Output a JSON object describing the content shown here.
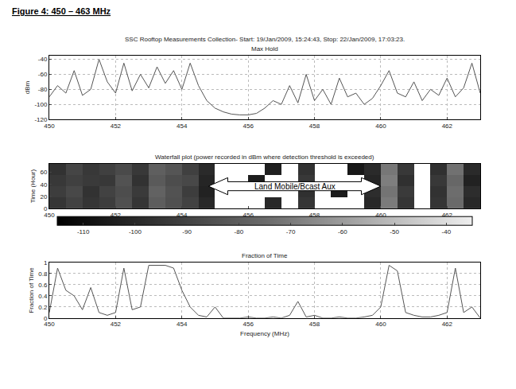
{
  "heading": "Figure 4: 450 – 463 MHz",
  "subtitle": "SSC Rooftop Measurements Collection- Start: 19/Jan/2009, 15:24:43, Stop: 22/Jan/2009, 17:03:23.",
  "chart_data": [
    {
      "type": "line",
      "title": "Max Hold",
      "y_label": "dBm",
      "color": "#555555",
      "grid": true,
      "x": [
        450,
        450.25,
        450.5,
        450.75,
        451,
        451.25,
        451.5,
        451.75,
        452,
        452.25,
        452.5,
        452.75,
        453,
        453.25,
        453.5,
        453.75,
        454,
        454.25,
        454.5,
        454.75,
        455,
        455.25,
        455.5,
        455.75,
        456,
        456.25,
        456.5,
        456.75,
        457,
        457.25,
        457.5,
        457.75,
        458,
        458.25,
        458.5,
        458.75,
        459,
        459.25,
        459.5,
        459.75,
        460,
        460.25,
        460.5,
        460.75,
        461,
        461.25,
        461.5,
        461.75,
        462,
        462.25,
        462.5,
        462.75,
        463
      ],
      "values": [
        -90,
        -75,
        -85,
        -55,
        -88,
        -80,
        -40,
        -70,
        -85,
        -45,
        -82,
        -60,
        -78,
        -50,
        -72,
        -55,
        -80,
        -45,
        -75,
        -95,
        -105,
        -110,
        -113,
        -114,
        -114,
        -112,
        -105,
        -95,
        -100,
        -75,
        -98,
        -60,
        -95,
        -80,
        -100,
        -65,
        -90,
        -85,
        -100,
        -92,
        -75,
        -55,
        -85,
        -90,
        -70,
        -95,
        -80,
        -88,
        -65,
        -90,
        -78,
        -45,
        -85
      ],
      "xlim": [
        450,
        463
      ],
      "xticks": [
        450,
        452,
        454,
        456,
        458,
        460,
        462
      ],
      "ylim": [
        -120,
        -35
      ],
      "yticks": [
        -120,
        -100,
        -80,
        -60,
        -40
      ]
    },
    {
      "type": "heatmap",
      "title": "Waterfall plot (power recorded in dBm where detection threshold is exceeded)",
      "y_label": "Time (Hour)",
      "grid": false,
      "annotation": {
        "text": "Land Mobile/Bcast Aux",
        "x": [
          454.8,
          460
        ]
      },
      "x": [
        450.25,
        450.75,
        451.25,
        451.75,
        452.25,
        452.75,
        453.25,
        453.75,
        454.25,
        454.75,
        455.25,
        455.75,
        456.25,
        456.75,
        457.25,
        457.75,
        458.25,
        458.75,
        459.25,
        459.75,
        460.25,
        460.75,
        461.25,
        461.75,
        462.25,
        462.75
      ],
      "y": [
        9.25,
        27.75,
        46.25,
        64.75
      ],
      "z": [
        [
          -95,
          -90,
          -95,
          -92,
          -85,
          -95,
          -80,
          -85,
          -90,
          -100,
          null,
          null,
          null,
          -100,
          null,
          -95,
          null,
          null,
          null,
          -100,
          -70,
          -95,
          null,
          -95,
          -75,
          -100
        ],
        [
          -92,
          -88,
          -96,
          -90,
          -86,
          -93,
          -78,
          -84,
          -92,
          -102,
          null,
          null,
          null,
          null,
          null,
          -97,
          null,
          -105,
          null,
          -98,
          -72,
          -93,
          null,
          -96,
          -74,
          -98
        ],
        [
          -94,
          -91,
          -93,
          -94,
          -84,
          -96,
          -81,
          -86,
          -88,
          -101,
          null,
          null,
          -104,
          null,
          null,
          -94,
          null,
          null,
          null,
          -101,
          -69,
          -97,
          null,
          -94,
          -76,
          -102
        ],
        [
          -96,
          -89,
          -94,
          -91,
          -87,
          -94,
          -79,
          -83,
          -91,
          -99,
          null,
          null,
          null,
          -103,
          null,
          -96,
          null,
          null,
          -106,
          -99,
          -71,
          -94,
          null,
          -97,
          -73,
          -99
        ]
      ],
      "zlim": [
        -115,
        -35
      ],
      "zticks": [
        -110,
        -100,
        -90,
        -80,
        -70,
        -60,
        -50,
        -40
      ],
      "xlim": [
        450,
        463
      ],
      "xticks": [
        450,
        452,
        454,
        456,
        458,
        460,
        462
      ],
      "ylim": [
        0,
        74
      ],
      "yticks": [
        0,
        20,
        40,
        60
      ]
    },
    {
      "type": "line",
      "title": "Fraction of Time",
      "y_label": "Fraction of Time",
      "x_label": "Frequency (MHz)",
      "color": "#555555",
      "grid": true,
      "x": [
        450,
        450.25,
        450.5,
        450.75,
        451,
        451.25,
        451.5,
        451.75,
        452,
        452.25,
        452.5,
        452.75,
        453,
        453.25,
        453.5,
        453.75,
        454,
        454.25,
        454.5,
        454.75,
        455,
        455.25,
        455.5,
        455.75,
        456,
        456.25,
        456.5,
        456.75,
        457,
        457.25,
        457.5,
        457.75,
        458,
        458.25,
        458.5,
        458.75,
        459,
        459.25,
        459.5,
        459.75,
        460,
        460.25,
        460.5,
        460.75,
        461,
        461.25,
        461.5,
        461.75,
        462,
        462.25,
        462.5,
        462.75,
        463
      ],
      "values": [
        0.1,
        0.9,
        0.5,
        0.4,
        0.15,
        0.55,
        0.1,
        0.05,
        0.1,
        0.9,
        0.15,
        0.2,
        0.95,
        0.95,
        0.95,
        0.9,
        0.5,
        0.2,
        0.05,
        0.02,
        0.2,
        0,
        0,
        0,
        0.02,
        0,
        0,
        0.02,
        0,
        0.05,
        0.3,
        0.02,
        0.05,
        0,
        0,
        0.02,
        0,
        0,
        0.02,
        0.05,
        0.2,
        0.95,
        0.85,
        0.1,
        0.05,
        0.02,
        0.02,
        0.05,
        0.1,
        0.9,
        0.1,
        0.2,
        0
      ],
      "xlim": [
        450,
        463
      ],
      "xticks": [
        450,
        452,
        454,
        456,
        458,
        460,
        462
      ],
      "ylim": [
        0,
        1
      ],
      "yticks": [
        0,
        0.2,
        0.4,
        0.6,
        0.8,
        1
      ]
    }
  ]
}
